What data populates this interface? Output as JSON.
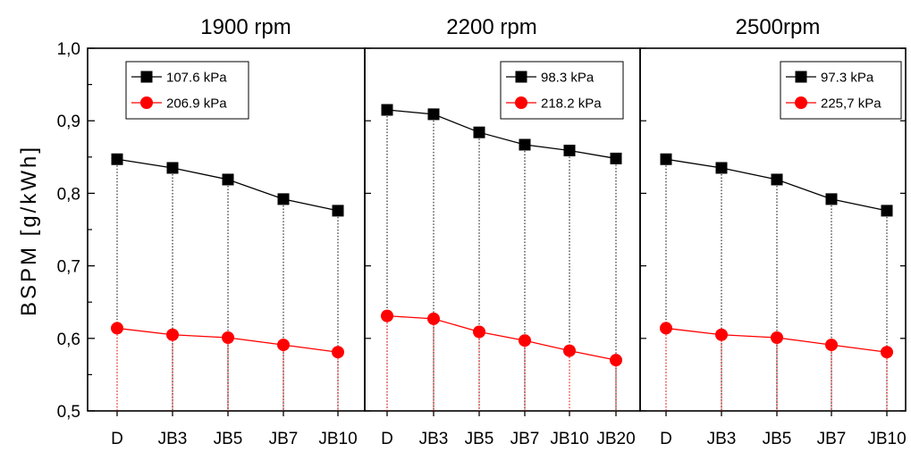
{
  "chart_data": {
    "type": "line",
    "ylabel": "BSPM [g/kWh]",
    "ylim": [
      0.5,
      1.0
    ],
    "yticks": [
      "0,5",
      "0,6",
      "0,7",
      "0,8",
      "0,9",
      "1,0"
    ],
    "grid": false,
    "panels": [
      {
        "title": "1900 rpm",
        "categories": [
          "D",
          "JB3",
          "JB5",
          "JB7",
          "JB10"
        ],
        "legend_position": "top-left",
        "series": [
          {
            "name": "107.6 kPa",
            "color": "#000000",
            "marker": "square",
            "values": [
              0.847,
              0.835,
              0.819,
              0.792,
              0.776
            ]
          },
          {
            "name": "206.9 kPa",
            "color": "#ff0000",
            "marker": "circle",
            "values": [
              0.614,
              0.605,
              0.601,
              0.591,
              0.581
            ]
          }
        ]
      },
      {
        "title": "2200 rpm",
        "categories": [
          "D",
          "JB3",
          "JB5",
          "JB7",
          "JB10",
          "JB20"
        ],
        "legend_position": "top-right",
        "series": [
          {
            "name": "98.3 kPa",
            "color": "#000000",
            "marker": "square",
            "values": [
              0.915,
              0.909,
              0.884,
              0.867,
              0.859,
              0.848
            ]
          },
          {
            "name": "218.2 kPa",
            "color": "#ff0000",
            "marker": "circle",
            "values": [
              0.631,
              0.627,
              0.609,
              0.597,
              0.583,
              0.57
            ]
          }
        ]
      },
      {
        "title": "2500rpm",
        "categories": [
          "D",
          "JB3",
          "JB5",
          "JB7",
          "JB10"
        ],
        "legend_position": "top-right",
        "series": [
          {
            "name": "97.3 kPa",
            "color": "#000000",
            "marker": "square",
            "values": [
              0.847,
              0.835,
              0.819,
              0.792,
              0.776
            ]
          },
          {
            "name": "225,7 kPa",
            "color": "#ff0000",
            "marker": "circle",
            "values": [
              0.614,
              0.605,
              0.601,
              0.591,
              0.581
            ]
          }
        ]
      }
    ]
  }
}
